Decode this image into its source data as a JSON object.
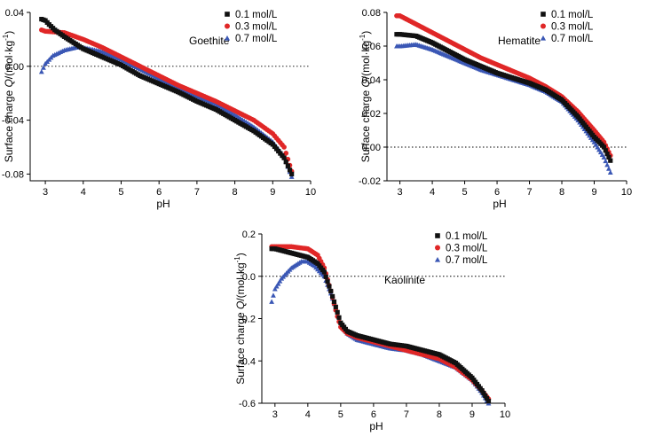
{
  "colors": {
    "s01": "#111111",
    "s03": "#e02727",
    "s07": "#3a57b5"
  },
  "chart_data": [
    {
      "type": "scatter",
      "panel_label": "Goethite",
      "xlabel": "pH",
      "ylabel": "Surface charge Q/(mol·kg⁻¹)",
      "ylabel_parts": {
        "pre": "Surface charge ",
        "q": "Q",
        "mid": "/(mol·kg",
        "sup": "-1",
        "post": ")"
      },
      "xlim": [
        2.6,
        10
      ],
      "ylim": [
        -0.085,
        0.04
      ],
      "xticks": [
        3,
        4,
        5,
        6,
        7,
        8,
        9,
        10
      ],
      "yticks": [
        0.04,
        0.0,
        -0.04,
        -0.08
      ],
      "ytick_labels": [
        "0.04",
        "0.00",
        "-0.04",
        "-0.08"
      ],
      "ref_line": 0,
      "legend_pos": "top-right",
      "series": [
        {
          "name": "0.1 mol/L",
          "marker": "square",
          "color": "#111111",
          "points": [
            [
              2.9,
              0.035
            ],
            [
              3.0,
              0.034
            ],
            [
              3.1,
              0.031
            ],
            [
              3.25,
              0.027
            ],
            [
              3.5,
              0.022
            ],
            [
              4.0,
              0.013
            ],
            [
              4.5,
              0.007
            ],
            [
              5.0,
              0.001
            ],
            [
              5.5,
              -0.007
            ],
            [
              6.0,
              -0.013
            ],
            [
              6.5,
              -0.019
            ],
            [
              7.0,
              -0.026
            ],
            [
              7.5,
              -0.032
            ],
            [
              8.0,
              -0.04
            ],
            [
              8.5,
              -0.048
            ],
            [
              9.0,
              -0.058
            ],
            [
              9.3,
              -0.068
            ],
            [
              9.5,
              -0.08
            ]
          ]
        },
        {
          "name": "0.3 mol/L",
          "marker": "circle",
          "color": "#e02727",
          "points": [
            [
              2.9,
              0.027
            ],
            [
              3.0,
              0.026
            ],
            [
              3.5,
              0.025
            ],
            [
              4.0,
              0.02
            ],
            [
              4.5,
              0.014
            ],
            [
              5.0,
              0.007
            ],
            [
              5.5,
              0.0
            ],
            [
              6.0,
              -0.007
            ],
            [
              6.5,
              -0.014
            ],
            [
              7.0,
              -0.02
            ],
            [
              7.5,
              -0.026
            ],
            [
              8.0,
              -0.033
            ],
            [
              8.5,
              -0.04
            ],
            [
              9.0,
              -0.05
            ],
            [
              9.3,
              -0.06
            ],
            [
              9.5,
              -0.078
            ]
          ]
        },
        {
          "name": "0.7 mol/L",
          "marker": "triangle",
          "color": "#3a57b5",
          "points": [
            [
              2.9,
              -0.004
            ],
            [
              3.0,
              0.002
            ],
            [
              3.2,
              0.008
            ],
            [
              3.5,
              0.012
            ],
            [
              3.8,
              0.014
            ],
            [
              4.0,
              0.014
            ],
            [
              4.5,
              0.011
            ],
            [
              5.0,
              0.005
            ],
            [
              5.5,
              -0.002
            ],
            [
              6.0,
              -0.009
            ],
            [
              6.5,
              -0.016
            ],
            [
              7.0,
              -0.022
            ],
            [
              7.5,
              -0.028
            ],
            [
              8.0,
              -0.036
            ],
            [
              8.5,
              -0.045
            ],
            [
              9.0,
              -0.056
            ],
            [
              9.3,
              -0.067
            ],
            [
              9.5,
              -0.082
            ]
          ]
        }
      ]
    },
    {
      "type": "scatter",
      "panel_label": "Hematite",
      "xlabel": "pH",
      "ylabel": "Surface charge Q/(mol·kg⁻¹)",
      "ylabel_parts": {
        "pre": "Surface charge ",
        "q": "Q",
        "mid": "/(mol·kg",
        "sup": "-1",
        "post": ")"
      },
      "xlim": [
        2.6,
        10
      ],
      "ylim": [
        -0.02,
        0.08
      ],
      "xticks": [
        3,
        4,
        5,
        6,
        7,
        8,
        9,
        10
      ],
      "yticks": [
        0.08,
        0.06,
        0.04,
        0.02,
        0.0,
        -0.02
      ],
      "ytick_labels": [
        "0.08",
        "0.06",
        "0.04",
        "0.02",
        "0.00",
        "-0.02"
      ],
      "ref_line": 0,
      "legend_pos": "top-right",
      "series": [
        {
          "name": "0.1 mol/L",
          "marker": "square",
          "color": "#111111",
          "points": [
            [
              2.9,
              0.067
            ],
            [
              3.0,
              0.067
            ],
            [
              3.5,
              0.066
            ],
            [
              4.0,
              0.062
            ],
            [
              4.5,
              0.057
            ],
            [
              5.0,
              0.052
            ],
            [
              5.5,
              0.048
            ],
            [
              6.0,
              0.044
            ],
            [
              6.5,
              0.041
            ],
            [
              7.0,
              0.038
            ],
            [
              7.5,
              0.034
            ],
            [
              8.0,
              0.028
            ],
            [
              8.5,
              0.018
            ],
            [
              9.0,
              0.006
            ],
            [
              9.3,
              0.0
            ],
            [
              9.5,
              -0.008
            ]
          ]
        },
        {
          "name": "0.3 mol/L",
          "marker": "circle",
          "color": "#e02727",
          "points": [
            [
              2.9,
              0.078
            ],
            [
              3.0,
              0.078
            ],
            [
              3.2,
              0.076
            ],
            [
              3.5,
              0.073
            ],
            [
              4.0,
              0.068
            ],
            [
              4.5,
              0.063
            ],
            [
              5.0,
              0.058
            ],
            [
              5.5,
              0.053
            ],
            [
              6.0,
              0.049
            ],
            [
              6.5,
              0.045
            ],
            [
              7.0,
              0.041
            ],
            [
              7.5,
              0.036
            ],
            [
              8.0,
              0.03
            ],
            [
              8.5,
              0.021
            ],
            [
              9.0,
              0.01
            ],
            [
              9.3,
              0.003
            ],
            [
              9.5,
              -0.005
            ]
          ]
        },
        {
          "name": "0.7 mol/L",
          "marker": "triangle",
          "color": "#3a57b5",
          "points": [
            [
              2.9,
              0.06
            ],
            [
              3.0,
              0.06
            ],
            [
              3.5,
              0.061
            ],
            [
              4.0,
              0.058
            ],
            [
              4.5,
              0.054
            ],
            [
              5.0,
              0.05
            ],
            [
              5.5,
              0.046
            ],
            [
              6.0,
              0.043
            ],
            [
              6.5,
              0.04
            ],
            [
              7.0,
              0.037
            ],
            [
              7.5,
              0.033
            ],
            [
              8.0,
              0.027
            ],
            [
              8.5,
              0.016
            ],
            [
              9.0,
              0.003
            ],
            [
              9.3,
              -0.006
            ],
            [
              9.5,
              -0.015
            ]
          ]
        }
      ]
    },
    {
      "type": "scatter",
      "panel_label": "Kaolinite",
      "xlabel": "pH",
      "ylabel": "Surface charge Q/(mol·kg⁻¹)",
      "ylabel_parts": {
        "pre": "Surface charge ",
        "q": "Q",
        "mid": "/(mol·kg",
        "sup": "-1",
        "post": ")"
      },
      "xlim": [
        2.6,
        10
      ],
      "ylim": [
        -0.6,
        0.2
      ],
      "xticks": [
        3,
        4,
        5,
        6,
        7,
        8,
        9,
        10
      ],
      "yticks": [
        0.2,
        0.0,
        -0.2,
        -0.4,
        -0.6
      ],
      "ytick_labels": [
        "0.2",
        "0.0",
        "-0.2",
        "-0.4",
        "-0.6"
      ],
      "ref_line": 0,
      "legend_pos": "top-right",
      "series": [
        {
          "name": "0.1 mol/L",
          "marker": "square",
          "color": "#111111",
          "points": [
            [
              2.9,
              0.13
            ],
            [
              3.0,
              0.13
            ],
            [
              3.5,
              0.11
            ],
            [
              4.0,
              0.09
            ],
            [
              4.3,
              0.06
            ],
            [
              4.5,
              0.02
            ],
            [
              4.7,
              -0.07
            ],
            [
              4.9,
              -0.17
            ],
            [
              5.0,
              -0.22
            ],
            [
              5.2,
              -0.26
            ],
            [
              5.5,
              -0.28
            ],
            [
              6.0,
              -0.3
            ],
            [
              6.5,
              -0.32
            ],
            [
              7.0,
              -0.33
            ],
            [
              7.5,
              -0.35
            ],
            [
              8.0,
              -0.37
            ],
            [
              8.5,
              -0.41
            ],
            [
              9.0,
              -0.48
            ],
            [
              9.3,
              -0.54
            ],
            [
              9.5,
              -0.59
            ]
          ]
        },
        {
          "name": "0.3 mol/L",
          "marker": "circle",
          "color": "#e02727",
          "points": [
            [
              2.9,
              0.14
            ],
            [
              3.0,
              0.14
            ],
            [
              3.5,
              0.14
            ],
            [
              4.0,
              0.13
            ],
            [
              4.3,
              0.1
            ],
            [
              4.5,
              0.04
            ],
            [
              4.7,
              -0.07
            ],
            [
              4.9,
              -0.19
            ],
            [
              5.0,
              -0.24
            ],
            [
              5.2,
              -0.27
            ],
            [
              5.5,
              -0.29
            ],
            [
              6.0,
              -0.31
            ],
            [
              6.5,
              -0.33
            ],
            [
              7.0,
              -0.35
            ],
            [
              7.5,
              -0.37
            ],
            [
              8.0,
              -0.39
            ],
            [
              8.5,
              -0.43
            ],
            [
              9.0,
              -0.49
            ],
            [
              9.3,
              -0.54
            ],
            [
              9.5,
              -0.58
            ]
          ]
        },
        {
          "name": "0.7 mol/L",
          "marker": "triangle",
          "color": "#3a57b5",
          "points": [
            [
              2.9,
              -0.12
            ],
            [
              3.0,
              -0.06
            ],
            [
              3.2,
              -0.01
            ],
            [
              3.5,
              0.04
            ],
            [
              3.8,
              0.07
            ],
            [
              4.0,
              0.07
            ],
            [
              4.2,
              0.05
            ],
            [
              4.5,
              0.0
            ],
            [
              4.7,
              -0.08
            ],
            [
              4.9,
              -0.18
            ],
            [
              5.0,
              -0.23
            ],
            [
              5.2,
              -0.27
            ],
            [
              5.5,
              -0.3
            ],
            [
              6.0,
              -0.32
            ],
            [
              6.5,
              -0.34
            ],
            [
              7.0,
              -0.35
            ],
            [
              7.5,
              -0.37
            ],
            [
              8.0,
              -0.4
            ],
            [
              8.5,
              -0.43
            ],
            [
              9.0,
              -0.49
            ],
            [
              9.3,
              -0.55
            ],
            [
              9.5,
              -0.6
            ]
          ]
        }
      ]
    }
  ]
}
